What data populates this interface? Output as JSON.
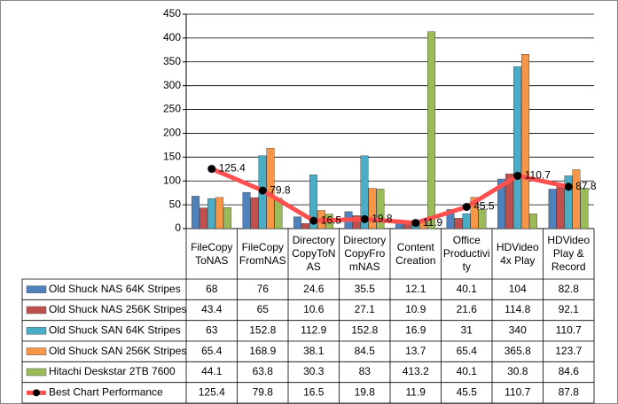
{
  "chart_data": {
    "type": "bar",
    "categories": [
      "FileCopyToNAS",
      "FileCopyFromNAS",
      "DirectoryCopyToNAS",
      "DirectoryCopyFromNAS",
      "Content Creation",
      "Office Productivity",
      "HDVideo 4x Play",
      "HDVideo Play & Record"
    ],
    "series": [
      {
        "name": "Old Shuck NAS 64K Stripes",
        "color": "#4f81bd",
        "values": [
          68,
          76,
          24.6,
          35.5,
          12.1,
          40.1,
          104,
          82.8
        ]
      },
      {
        "name": "Old Shuck NAS 256K Stripes",
        "color": "#c0504d",
        "values": [
          43.4,
          65,
          10.6,
          27.1,
          10.9,
          21.6,
          114.8,
          92.1
        ]
      },
      {
        "name": "Old Shuck SAN 64K Stripes",
        "color": "#4bacc6",
        "values": [
          63,
          152.8,
          112.9,
          152.8,
          16.9,
          31,
          340,
          110.7
        ]
      },
      {
        "name": "Old Shuck SAN 256K Stripes",
        "color": "#f79646",
        "values": [
          65.4,
          168.9,
          38.1,
          84.5,
          13.7,
          65.4,
          365.8,
          123.7
        ]
      },
      {
        "name": "Hitachi Deskstar 2TB 7600",
        "color": "#9bbb59",
        "values": [
          44.1,
          63.8,
          30.3,
          83,
          413.2,
          40.1,
          30.8,
          84.6
        ]
      },
      {
        "name": "Best Chart Performance",
        "color": "#ff5050",
        "type": "line",
        "values": [
          125.4,
          79.8,
          16.5,
          19.8,
          11.9,
          45.5,
          110.7,
          87.8
        ]
      }
    ],
    "ylim": [
      0,
      450
    ],
    "yticks": [
      0,
      50,
      100,
      150,
      200,
      250,
      300,
      350,
      400,
      450
    ],
    "grid": true
  }
}
